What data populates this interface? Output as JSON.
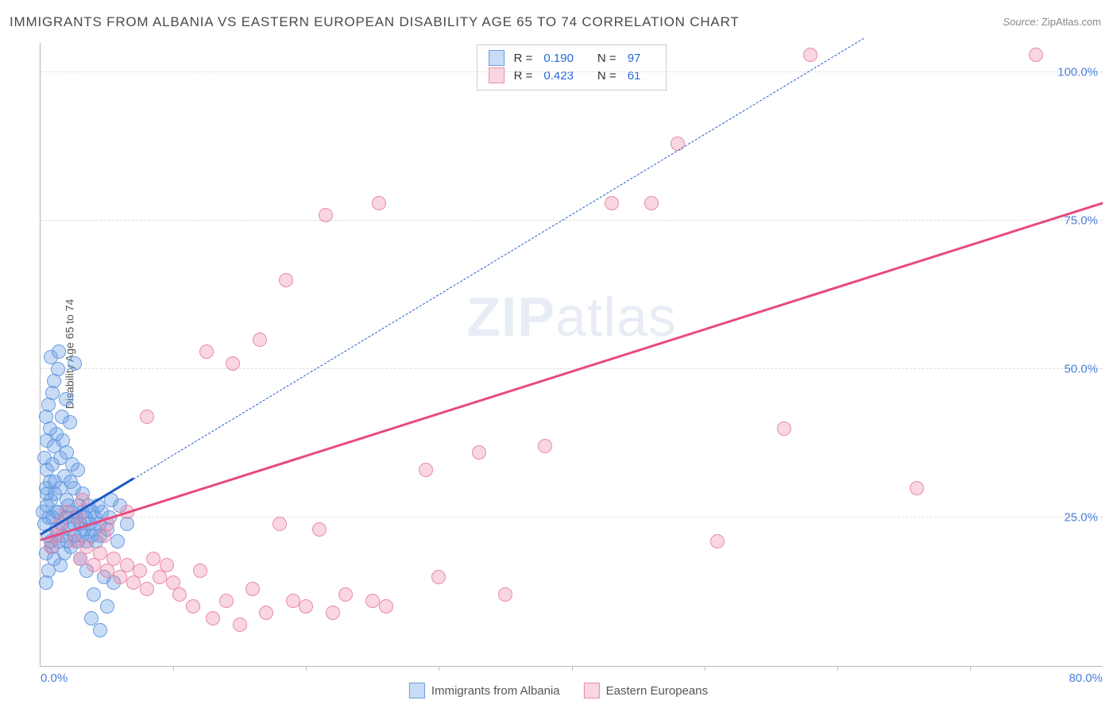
{
  "title": "IMMIGRANTS FROM ALBANIA VS EASTERN EUROPEAN DISABILITY AGE 65 TO 74 CORRELATION CHART",
  "source_label": "Source:",
  "source_value": "ZipAtlas.com",
  "yaxis_label": "Disability Age 65 to 74",
  "watermark_a": "ZIP",
  "watermark_b": "atlas",
  "chart": {
    "type": "scatter",
    "xlim": [
      0,
      80
    ],
    "ylim": [
      0,
      105
    ],
    "xticks": [
      0,
      80
    ],
    "xtick_labels": [
      "0.0%",
      "80.0%"
    ],
    "xtick_marks": [
      10,
      20,
      30,
      40,
      50,
      60,
      70
    ],
    "yticks": [
      25,
      50,
      75,
      100
    ],
    "ytick_labels": [
      "25.0%",
      "50.0%",
      "75.0%",
      "100.0%"
    ],
    "background_color": "#ffffff",
    "grid_color": "#dddddd",
    "point_radius": 9,
    "series": [
      {
        "name": "Immigrants from Albania",
        "fill_color": "rgba(100,155,230,0.35)",
        "stroke_color": "#6a9de0",
        "trend_color": "#1e5bc6",
        "trend_style": "solid-then-dashed",
        "trend_solid_xrange": [
          0,
          7
        ],
        "trend_dash_xrange": [
          7,
          62
        ],
        "trend_y_at_x0": 22,
        "trend_slope": 1.35,
        "R_label": "R =",
        "R_value": "0.190",
        "N_label": "N =",
        "N_value": "97",
        "points": [
          [
            0.3,
            24
          ],
          [
            0.4,
            19
          ],
          [
            0.5,
            27
          ],
          [
            0.6,
            22
          ],
          [
            0.7,
            31
          ],
          [
            0.8,
            21
          ],
          [
            0.5,
            33
          ],
          [
            0.9,
            25
          ],
          [
            1.0,
            18
          ],
          [
            1.1,
            29
          ],
          [
            1.2,
            23
          ],
          [
            0.4,
            14
          ],
          [
            0.6,
            16
          ],
          [
            1.3,
            26
          ],
          [
            1.4,
            21
          ],
          [
            1.5,
            30
          ],
          [
            1.6,
            24
          ],
          [
            0.2,
            26
          ],
          [
            0.8,
            28
          ],
          [
            1.7,
            22
          ],
          [
            1.8,
            19
          ],
          [
            0.3,
            35
          ],
          [
            1.9,
            25
          ],
          [
            2.0,
            21
          ],
          [
            0.9,
            34
          ],
          [
            2.1,
            27
          ],
          [
            1.0,
            37
          ],
          [
            2.2,
            23
          ],
          [
            0.5,
            38
          ],
          [
            2.3,
            20
          ],
          [
            2.4,
            26
          ],
          [
            0.7,
            40
          ],
          [
            2.5,
            24
          ],
          [
            1.2,
            39
          ],
          [
            2.6,
            22
          ],
          [
            2.0,
            36
          ],
          [
            2.7,
            25
          ],
          [
            0.4,
            42
          ],
          [
            2.8,
            21
          ],
          [
            1.5,
            35
          ],
          [
            2.9,
            27
          ],
          [
            3.0,
            24
          ],
          [
            0.6,
            44
          ],
          [
            3.1,
            22
          ],
          [
            1.8,
            32
          ],
          [
            3.2,
            26
          ],
          [
            3.3,
            23
          ],
          [
            0.9,
            46
          ],
          [
            3.4,
            25
          ],
          [
            2.5,
            30
          ],
          [
            3.5,
            21
          ],
          [
            3.6,
            27
          ],
          [
            1.6,
            42
          ],
          [
            3.7,
            24
          ],
          [
            3.8,
            22
          ],
          [
            1.0,
            48
          ],
          [
            3.9,
            26
          ],
          [
            4.0,
            23
          ],
          [
            2.6,
            51
          ],
          [
            4.1,
            25
          ],
          [
            4.2,
            21
          ],
          [
            1.4,
            53
          ],
          [
            4.3,
            27
          ],
          [
            4.4,
            24
          ],
          [
            4.5,
            22
          ],
          [
            3.0,
            18
          ],
          [
            4.6,
            26
          ],
          [
            5.0,
            23
          ],
          [
            3.5,
            16
          ],
          [
            5.5,
            14
          ],
          [
            4.0,
            12
          ],
          [
            5.2,
            25
          ],
          [
            5.8,
            21
          ],
          [
            4.5,
            6
          ],
          [
            6.0,
            27
          ],
          [
            5.0,
            10
          ],
          [
            6.5,
            24
          ],
          [
            3.8,
            8
          ],
          [
            5.3,
            28
          ],
          [
            4.8,
            15
          ],
          [
            2.2,
            41
          ],
          [
            1.9,
            45
          ],
          [
            1.3,
            50
          ],
          [
            0.8,
            52
          ],
          [
            1.1,
            31
          ],
          [
            2.4,
            34
          ],
          [
            0.5,
            29
          ],
          [
            1.7,
            38
          ],
          [
            2.8,
            33
          ],
          [
            3.2,
            29
          ],
          [
            0.6,
            25
          ],
          [
            0.9,
            20
          ],
          [
            1.5,
            17
          ],
          [
            2.0,
            28
          ],
          [
            2.3,
            31
          ],
          [
            0.4,
            30
          ],
          [
            1.2,
            26
          ]
        ]
      },
      {
        "name": "Eastern Europeans",
        "fill_color": "rgba(235,120,155,0.30)",
        "stroke_color": "#e88ba8",
        "trend_color": "#e84a7f",
        "trend_style": "solid",
        "trend_xrange": [
          0,
          80
        ],
        "trend_y_at_x0": 21,
        "trend_slope": 0.71,
        "R_label": "R =",
        "R_value": "0.423",
        "N_label": "N =",
        "N_value": "61",
        "points": [
          [
            0.8,
            20
          ],
          [
            1.2,
            22
          ],
          [
            1.5,
            24
          ],
          [
            2.0,
            26
          ],
          [
            2.5,
            21
          ],
          [
            3.0,
            18
          ],
          [
            3.5,
            20
          ],
          [
            4.0,
            17
          ],
          [
            4.5,
            19
          ],
          [
            5.0,
            16
          ],
          [
            5.5,
            18
          ],
          [
            6.0,
            15
          ],
          [
            6.5,
            17
          ],
          [
            7.0,
            14
          ],
          [
            7.5,
            16
          ],
          [
            8.0,
            13
          ],
          [
            8.5,
            18
          ],
          [
            9.0,
            15
          ],
          [
            9.5,
            17
          ],
          [
            10.0,
            14
          ],
          [
            10.5,
            12
          ],
          [
            11.5,
            10
          ],
          [
            12.0,
            16
          ],
          [
            13.0,
            8
          ],
          [
            14.0,
            11
          ],
          [
            15.0,
            7
          ],
          [
            16.0,
            13
          ],
          [
            17.0,
            9
          ],
          [
            18.0,
            24
          ],
          [
            19.0,
            11
          ],
          [
            20.0,
            10
          ],
          [
            21.0,
            23
          ],
          [
            22.0,
            9
          ],
          [
            23.0,
            12
          ],
          [
            25.0,
            11
          ],
          [
            26.0,
            10
          ],
          [
            16.5,
            55
          ],
          [
            29.0,
            33
          ],
          [
            14.5,
            51
          ],
          [
            33.0,
            36
          ],
          [
            18.5,
            65
          ],
          [
            38.0,
            37
          ],
          [
            21.5,
            76
          ],
          [
            46.0,
            78
          ],
          [
            25.5,
            78
          ],
          [
            51.0,
            21
          ],
          [
            56.0,
            40
          ],
          [
            58.0,
            103
          ],
          [
            48.0,
            88
          ],
          [
            43.0,
            78
          ],
          [
            30.0,
            15
          ],
          [
            35.0,
            12
          ],
          [
            8.0,
            42
          ],
          [
            12.5,
            53
          ],
          [
            66.0,
            30
          ],
          [
            75.0,
            103
          ],
          [
            5.0,
            24
          ],
          [
            6.5,
            26
          ],
          [
            3.2,
            28
          ],
          [
            4.8,
            22
          ],
          [
            2.8,
            25
          ]
        ]
      }
    ]
  },
  "bottom_legend": [
    {
      "swatch_fill": "rgba(100,155,230,0.35)",
      "swatch_stroke": "#6a9de0",
      "label": "Immigrants from Albania"
    },
    {
      "swatch_fill": "rgba(235,120,155,0.30)",
      "swatch_stroke": "#e88ba8",
      "label": "Eastern Europeans"
    }
  ]
}
